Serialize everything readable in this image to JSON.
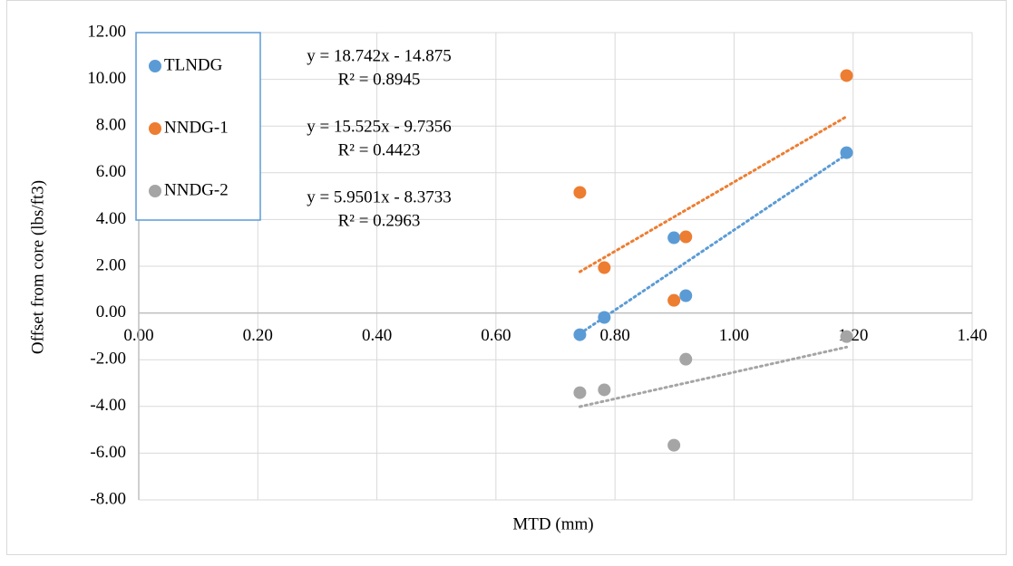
{
  "chart_data": {
    "type": "scatter",
    "x_label": "MTD (mm)",
    "y_label": "Offset from core (lbs/ft3)",
    "xlim": [
      0,
      1.4
    ],
    "xticks": [
      {
        "value": 0,
        "label": "0.00"
      },
      {
        "value": 0.2,
        "label": "0.20"
      },
      {
        "value": 0.4,
        "label": "0.40"
      },
      {
        "value": 0.6,
        "label": "0.60"
      },
      {
        "value": 0.8,
        "label": "0.80"
      },
      {
        "value": 1.0,
        "label": "1.00"
      },
      {
        "value": 1.2,
        "label": "1.20"
      },
      {
        "value": 1.4,
        "label": "1.40"
      }
    ],
    "ylim": [
      -8,
      12
    ],
    "yticks": [
      {
        "value": -8,
        "label": "-8.00"
      },
      {
        "value": -6,
        "label": "-6.00"
      },
      {
        "value": -4,
        "label": "-4.00"
      },
      {
        "value": -2,
        "label": "-2.00"
      },
      {
        "value": 0,
        "label": "0.00"
      },
      {
        "value": 2,
        "label": "2.00"
      },
      {
        "value": 4,
        "label": "4.00"
      },
      {
        "value": 6,
        "label": "6.00"
      },
      {
        "value": 8,
        "label": "8.00"
      },
      {
        "value": 10,
        "label": "10.00"
      },
      {
        "value": 12,
        "label": "12.00"
      }
    ],
    "grid": true,
    "legend": "upper left",
    "trendline": true,
    "series": [
      {
        "name": "TLNDG",
        "color": "#5b9bd5",
        "x": [
          0.741,
          0.782,
          0.899,
          0.919,
          1.189
        ],
        "values": [
          -0.93,
          -0.19,
          3.22,
          0.74,
          6.86
        ],
        "equation": "y = 18.742x - 14.875",
        "r_squared": "R² = 0.8945"
      },
      {
        "name": "NNDG-1",
        "color": "#ed7d31",
        "x": [
          0.741,
          0.782,
          0.899,
          0.919,
          1.189
        ],
        "values": [
          5.16,
          1.94,
          0.54,
          3.26,
          10.16
        ],
        "equation": "y = 15.525x - 9.7356",
        "r_squared": "R² = 0.4423"
      },
      {
        "name": "NNDG-2",
        "color": "#a5a5a5",
        "x": [
          0.741,
          0.782,
          0.899,
          0.919,
          1.189
        ],
        "values": [
          -3.41,
          -3.29,
          -5.66,
          -1.98,
          -1.01
        ],
        "equation": "y = 5.9501x - 8.3733",
        "r_squared": "R² = 0.2963"
      }
    ]
  }
}
